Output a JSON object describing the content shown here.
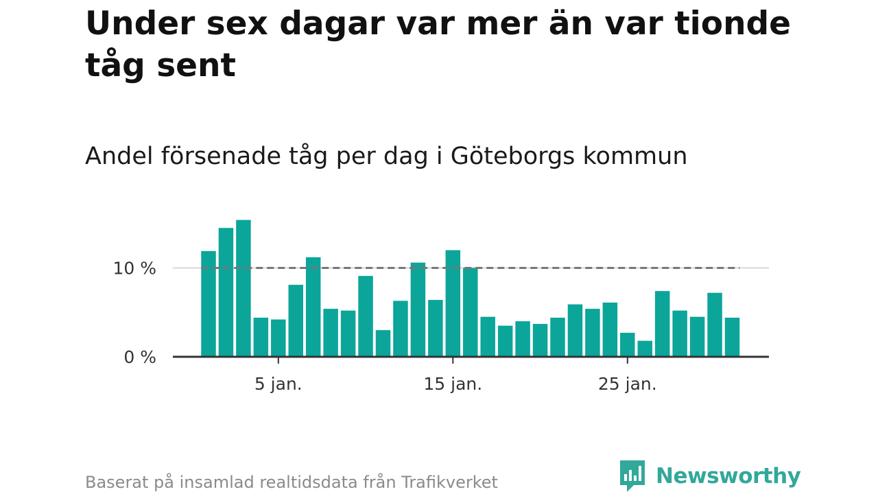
{
  "header": {
    "title": "Under sex dagar var mer än var tionde tåg sent",
    "subtitle": "Andel försenade tåg per dag i Göteborgs kommun"
  },
  "footer": {
    "source": "Baserat på insamlad realtidsdata från Trafikverket",
    "logo_text": "Newsworthy"
  },
  "colors": {
    "bar": "#0ca59a",
    "reference_line": "#777777",
    "axis": "#333333",
    "grid": "#d9d9d9",
    "logo": "#32a89b"
  },
  "chart_data": {
    "type": "bar",
    "title": "Under sex dagar var mer än var tionde tåg sent",
    "subtitle": "Andel försenade tåg per dag i Göteborgs kommun",
    "xlabel": "",
    "ylabel": "",
    "x": [
      1,
      2,
      3,
      4,
      5,
      6,
      7,
      8,
      9,
      10,
      11,
      12,
      13,
      14,
      15,
      16,
      17,
      18,
      19,
      20,
      21,
      22,
      23,
      24,
      25,
      26,
      27,
      28,
      29,
      30,
      31
    ],
    "x_unit": "januari",
    "values": [
      11.9,
      14.5,
      15.4,
      4.4,
      4.2,
      8.1,
      11.2,
      5.4,
      5.2,
      9.1,
      3.0,
      6.3,
      10.6,
      6.4,
      12.0,
      10.0,
      4.5,
      3.5,
      4.0,
      3.7,
      4.4,
      5.9,
      5.4,
      6.1,
      2.7,
      1.8,
      7.4,
      5.2,
      4.5,
      7.2,
      4.4
    ],
    "y_unit": "%",
    "ylim": [
      0,
      16
    ],
    "y_ticks": [
      {
        "value": 0,
        "label": "0 %"
      },
      {
        "value": 10,
        "label": "10 %"
      }
    ],
    "x_ticks": [
      {
        "value": 5,
        "label": "5 jan."
      },
      {
        "value": 15,
        "label": "15 jan."
      },
      {
        "value": 25,
        "label": "25 jan."
      }
    ],
    "reference_line": {
      "value": 10,
      "style": "dashed"
    },
    "grid": true,
    "legend": "none"
  }
}
